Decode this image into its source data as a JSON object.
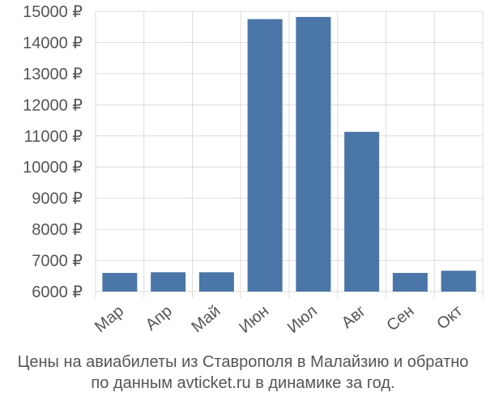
{
  "chart_data": {
    "type": "bar",
    "categories": [
      "Мар",
      "Апр",
      "Май",
      "Июн",
      "Июл",
      "Авг",
      "Сен",
      "Окт"
    ],
    "values": [
      6600,
      6620,
      6620,
      14750,
      14820,
      11130,
      6600,
      6670
    ],
    "ylim": [
      6000,
      15000
    ],
    "yticks": [
      6000,
      7000,
      8000,
      9000,
      10000,
      11000,
      12000,
      13000,
      14000,
      15000
    ],
    "ytick_labels": [
      "6000 ₽",
      "7000 ₽",
      "8000 ₽",
      "9000 ₽",
      "10000 ₽",
      "11000 ₽",
      "12000 ₽",
      "13000 ₽",
      "14000 ₽",
      "15000 ₽"
    ],
    "bar_color": "#4a76a8",
    "grid": true,
    "title": "",
    "xlabel": "",
    "ylabel": ""
  },
  "caption": {
    "line1": "Цены на авиабилеты из Ставрополя в Малайзию и обратно",
    "line2": "по данным avticket.ru в динамике за год."
  }
}
